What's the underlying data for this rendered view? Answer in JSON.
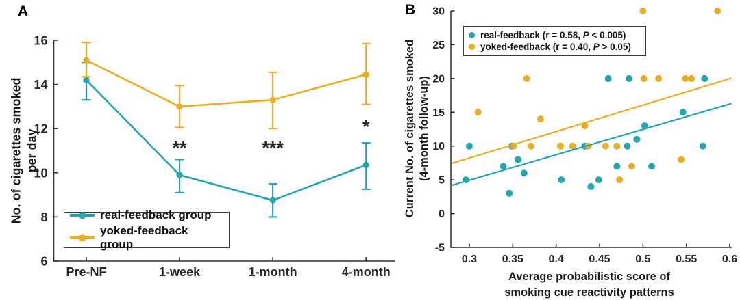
{
  "colors": {
    "real": "#22A7B0",
    "yoked": "#EAAE24",
    "axis": "#2e2e2e",
    "text": "#1b1b1b"
  },
  "panelA": {
    "label": "A",
    "ylabel_line1": "No. of cigarettes smoked",
    "ylabel_line2": "per day",
    "legend": [
      {
        "label": "real-feedback group",
        "series": "real"
      },
      {
        "label": "yoked-feedback group",
        "series": "yoked"
      }
    ]
  },
  "panelB": {
    "label": "B",
    "ylabel_line1": "Current No. of cigarettes smoked",
    "ylabel_line2": "(4-month follow-up)",
    "xlabel_line1": "Average probabilistic score of",
    "xlabel_line2": "smoking cue reactivity patterns",
    "legend": [
      {
        "pre": "real-feedback (r = 0.58, ",
        "italic": "P",
        "post": " < 0.005)",
        "series": "real"
      },
      {
        "pre": "yoked-feedback (r = 0.40, ",
        "italic": "P",
        "post": " > 0.05)",
        "series": "yoked"
      }
    ]
  },
  "chart_data": [
    {
      "panel": "A",
      "type": "line",
      "categories": [
        "Pre-NF",
        "1-week",
        "1-month",
        "4-month"
      ],
      "ylabel": "No. of cigarettes smoked per day",
      "ylim": [
        6,
        16
      ],
      "yticks": [
        6,
        8,
        10,
        12,
        14,
        16
      ],
      "grid": false,
      "legend_position": "lower left",
      "series": [
        {
          "name": "real-feedback group",
          "color_key": "real",
          "values": [
            14.2,
            9.9,
            8.75,
            10.35
          ],
          "err_low": [
            13.3,
            9.1,
            8.0,
            9.25
          ],
          "err_high": [
            15.0,
            10.6,
            9.5,
            11.35
          ]
        },
        {
          "name": "yoked-feedback group",
          "color_key": "yoked",
          "values": [
            15.1,
            13.0,
            13.3,
            14.45
          ],
          "err_low": [
            14.35,
            12.05,
            12.0,
            13.1
          ],
          "err_high": [
            15.9,
            13.95,
            14.55,
            15.85
          ]
        }
      ],
      "annotations": [
        {
          "category": "1-week",
          "text": "**",
          "y": 11.25
        },
        {
          "category": "1-month",
          "text": "***",
          "y": 11.25
        },
        {
          "category": "4-month",
          "text": "*",
          "y": 12.2
        }
      ]
    },
    {
      "panel": "B",
      "type": "scatter",
      "xlabel": "Average probabilistic score of smoking cue reactivity patterns",
      "ylabel": "Current No. of cigarettes smoked (4-month follow-up)",
      "xlim": [
        0.28,
        0.6
      ],
      "ylim": [
        -5,
        30
      ],
      "xticks": [
        0.3,
        0.35,
        0.4,
        0.45,
        0.5,
        0.55,
        0.6
      ],
      "yticks": [
        -5,
        0,
        5,
        10,
        15,
        20,
        25,
        30
      ],
      "grid": false,
      "legend_position": "upper left",
      "series": [
        {
          "name": "real-feedback (r = 0.58, P < 0.005)",
          "color_key": "real",
          "points": [
            [
              0.296,
              5
            ],
            [
              0.3,
              10
            ],
            [
              0.339,
              7
            ],
            [
              0.346,
              3
            ],
            [
              0.349,
              10
            ],
            [
              0.356,
              8
            ],
            [
              0.363,
              6
            ],
            [
              0.406,
              5
            ],
            [
              0.433,
              10
            ],
            [
              0.44,
              4
            ],
            [
              0.449,
              5
            ],
            [
              0.46,
              20
            ],
            [
              0.47,
              7
            ],
            [
              0.482,
              10
            ],
            [
              0.484,
              20
            ],
            [
              0.493,
              11
            ],
            [
              0.502,
              13
            ],
            [
              0.51,
              7
            ],
            [
              0.546,
              15
            ],
            [
              0.569,
              10
            ],
            [
              0.571,
              20
            ]
          ],
          "trend": {
            "x1": 0.28,
            "y1": 4.2,
            "x2": 0.602,
            "y2": 16.3
          }
        },
        {
          "name": "yoked-feedback (r = 0.40, P > 0.05)",
          "color_key": "yoked",
          "points": [
            [
              0.31,
              15
            ],
            [
              0.351,
              10
            ],
            [
              0.366,
              20
            ],
            [
              0.371,
              10
            ],
            [
              0.382,
              14
            ],
            [
              0.405,
              10
            ],
            [
              0.419,
              10
            ],
            [
              0.433,
              13
            ],
            [
              0.437,
              10
            ],
            [
              0.457,
              10
            ],
            [
              0.47,
              10
            ],
            [
              0.473,
              5
            ],
            [
              0.487,
              7
            ],
            [
              0.5,
              30
            ],
            [
              0.501,
              20
            ],
            [
              0.518,
              20
            ],
            [
              0.544,
              8
            ],
            [
              0.549,
              20
            ],
            [
              0.556,
              20
            ],
            [
              0.586,
              30
            ]
          ],
          "trend": {
            "x1": 0.28,
            "y1": 7.45,
            "x2": 0.602,
            "y2": 20.05
          }
        }
      ]
    }
  ]
}
